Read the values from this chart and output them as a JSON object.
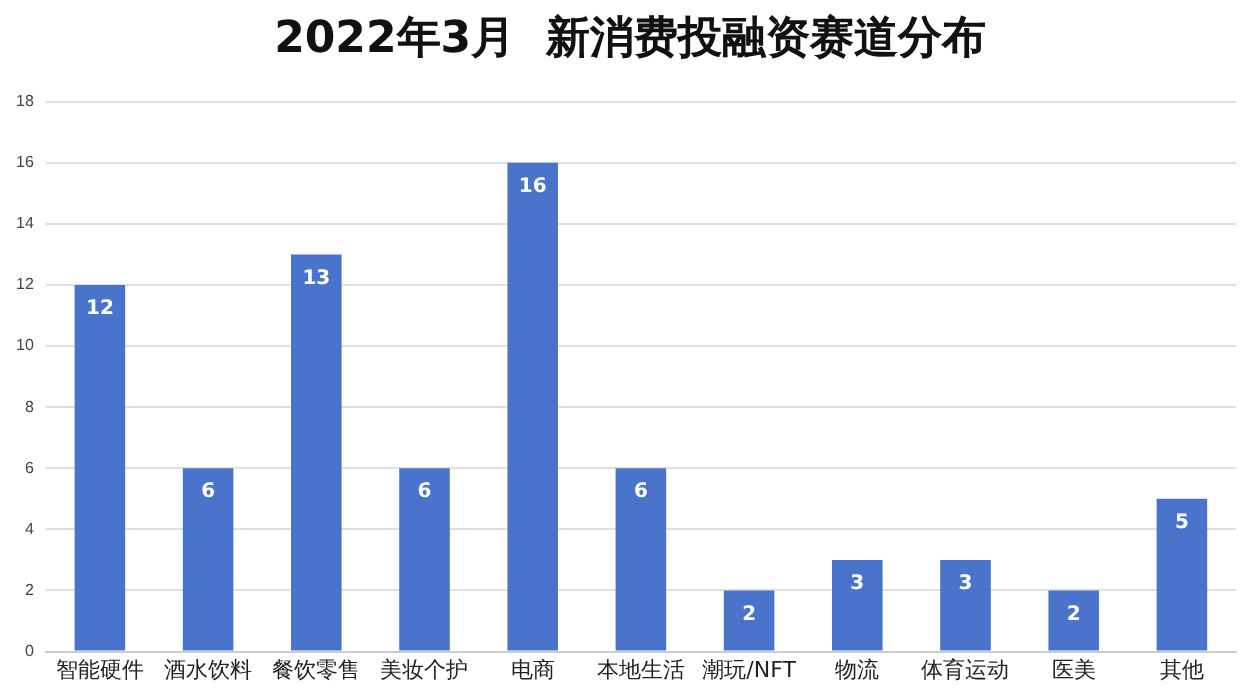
{
  "chart_data": {
    "type": "bar",
    "title": "2022年3月  新消费投融资赛道分布",
    "categories": [
      "智能硬件",
      "酒水饮料",
      "餐饮零售",
      "美妆个护",
      "电商",
      "本地生活",
      "潮玩/NFT",
      "物流",
      "体育运动",
      "医美",
      "其他"
    ],
    "values": [
      12,
      6,
      13,
      6,
      16,
      6,
      2,
      3,
      3,
      2,
      5
    ],
    "color": "#4a74cc",
    "ylim": [
      0,
      18
    ],
    "yticks": [
      0,
      2,
      4,
      6,
      8,
      10,
      12,
      14,
      16,
      18
    ],
    "grid": "y",
    "data_labels": true,
    "legend": false
  }
}
